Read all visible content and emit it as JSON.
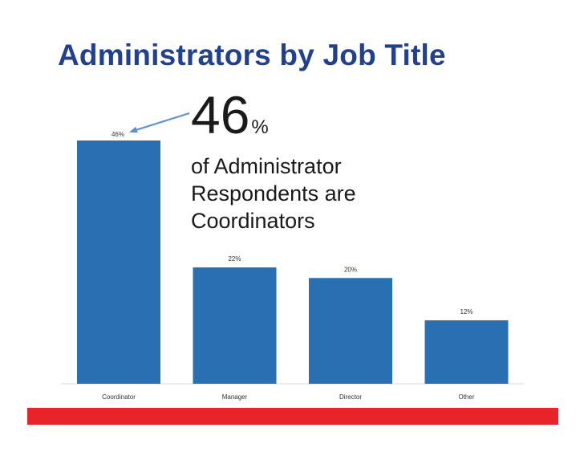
{
  "title": "Administrators by Job Title",
  "callout": {
    "value": "46",
    "unit": "%",
    "text": "of Administrator Respondents are Coordinators"
  },
  "colors": {
    "title": "#21408f",
    "bar": "#2970b3",
    "arrow": "#5b8fcf",
    "band": "#e8242a"
  },
  "chart_data": {
    "type": "bar",
    "categories": [
      "Coordinator",
      "Manager",
      "Director",
      "Other"
    ],
    "values": [
      46,
      22,
      20,
      12
    ],
    "data_labels": [
      "46%",
      "22%",
      "20%",
      "12%"
    ],
    "title": "",
    "xlabel": "",
    "ylabel": "",
    "ylim": [
      0,
      46
    ],
    "grid": false,
    "legend": "none"
  }
}
